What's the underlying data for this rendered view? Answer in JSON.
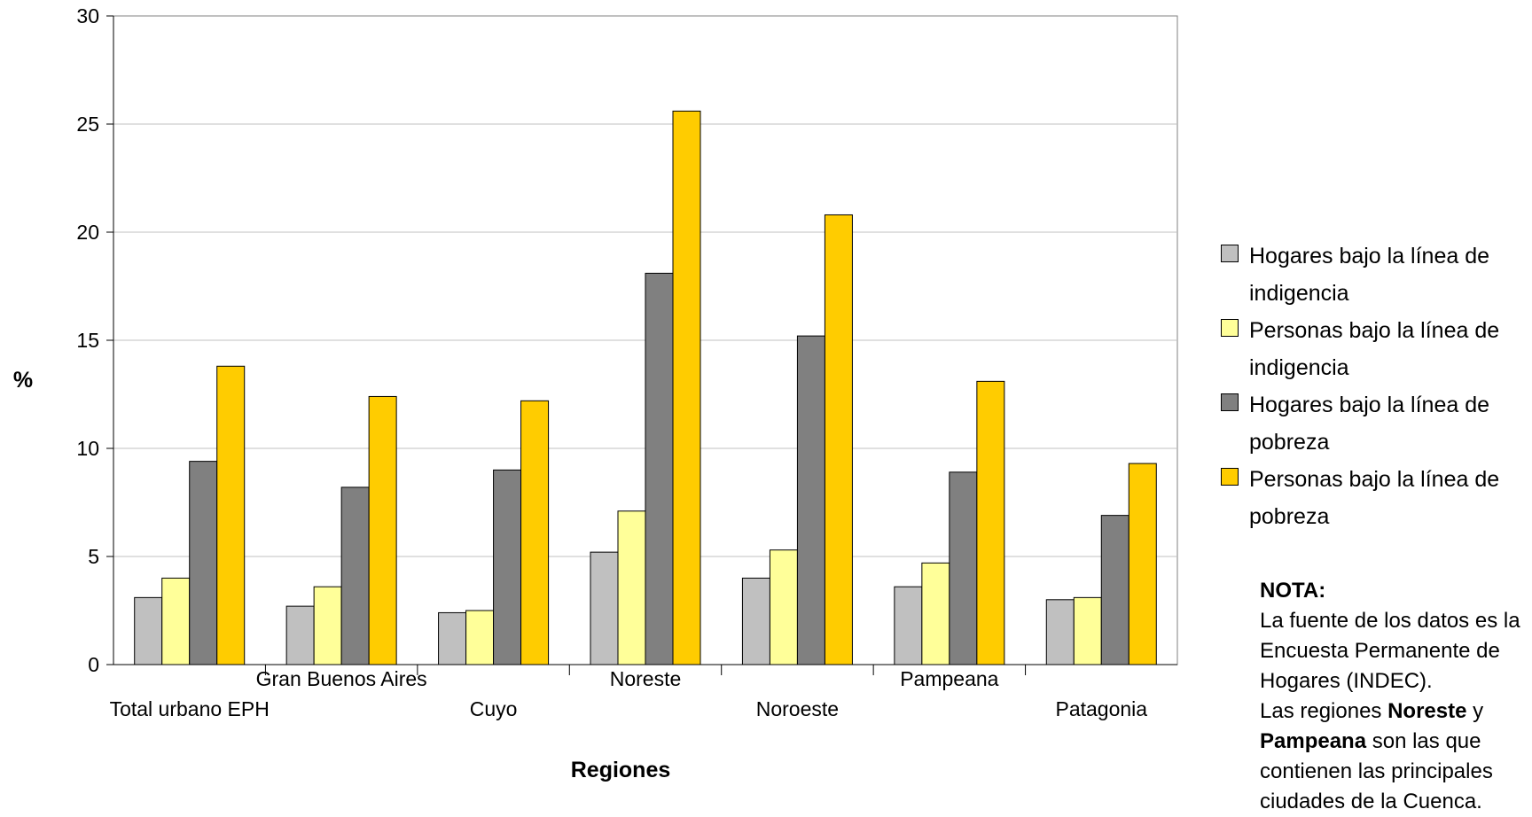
{
  "chart_data": {
    "type": "bar",
    "title": "",
    "xlabel": "Regiones",
    "ylabel": "%",
    "ylim": [
      0,
      30
    ],
    "yticks": [
      0,
      5,
      10,
      15,
      20,
      25,
      30
    ],
    "grid": true,
    "legend_position": "right",
    "categories": [
      "Total urbano EPH",
      "Gran Buenos Aires",
      "Cuyo",
      "Noreste",
      "Noroeste",
      "Pampeana",
      "Patagonia"
    ],
    "series": [
      {
        "name": "Hogares bajo la línea de indigencia",
        "color": "#c0c0c0",
        "values": [
          3.1,
          2.7,
          2.4,
          5.2,
          4.0,
          3.6,
          3.0
        ]
      },
      {
        "name": "Personas bajo la línea de indigencia",
        "color": "#ffff99",
        "values": [
          4.0,
          3.6,
          2.5,
          7.1,
          5.3,
          4.7,
          3.1
        ]
      },
      {
        "name": "Hogares bajo la línea de pobreza",
        "color": "#808080",
        "values": [
          9.4,
          8.2,
          9.0,
          18.1,
          15.2,
          8.9,
          6.9
        ]
      },
      {
        "name": "Personas bajo la línea de pobreza",
        "color": "#ffcc00",
        "values": [
          13.8,
          12.4,
          12.2,
          25.6,
          20.8,
          13.1,
          9.3
        ]
      }
    ]
  },
  "note": {
    "title": "NOTA:",
    "line1": "La fuente de los datos es la",
    "line2": "Encuesta Permanente de",
    "line3": "Hogares (INDEC).",
    "line4_pre": "Las regiones ",
    "line4_bold": "Noreste",
    "line4_post": " y",
    "line5_bold": "Pampeana",
    "line5_post": " son las que",
    "line6": "contienen las principales",
    "line7": "ciudades de la Cuenca."
  }
}
